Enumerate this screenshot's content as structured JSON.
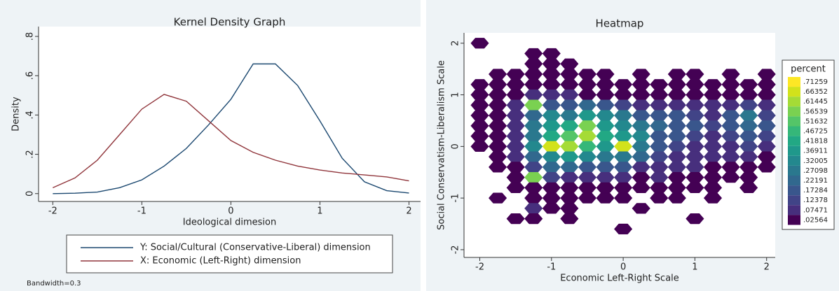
{
  "chart_data": [
    {
      "type": "line",
      "title": "Kernel Density Graph",
      "x_label": "Ideological dimesion",
      "y_label": "Density",
      "note": "Bandwidth=0.3",
      "legend": "bottom",
      "x": [
        -2,
        -1.75,
        -1.5,
        -1.25,
        -1,
        -0.75,
        -0.5,
        -0.25,
        0,
        0.25,
        0.5,
        0.75,
        1,
        1.25,
        1.5,
        1.75,
        2
      ],
      "series": [
        {
          "name": "Y: Social/Cultural (Conservative-Liberal) dimension",
          "color": "#1a476f",
          "values": [
            0.0,
            0.002,
            0.008,
            0.03,
            0.07,
            0.14,
            0.23,
            0.35,
            0.48,
            0.66,
            0.66,
            0.55,
            0.37,
            0.18,
            0.06,
            0.015,
            0.003
          ]
        },
        {
          "name": "X: Economic (Left-Right) dimension",
          "color": "#90353b",
          "values": [
            0.03,
            0.08,
            0.17,
            0.3,
            0.43,
            0.505,
            0.47,
            0.37,
            0.27,
            0.21,
            0.17,
            0.14,
            0.12,
            0.105,
            0.095,
            0.085,
            0.065
          ]
        }
      ],
      "xlim": [
        -2.16,
        2.13
      ],
      "ylim": [
        -0.04,
        0.85
      ],
      "xticks": [
        -2,
        -1,
        0,
        1,
        2
      ],
      "yticks": [
        0,
        {
          "value": 0.2,
          "label": ".2"
        },
        {
          "value": 0.4,
          "label": ".4"
        },
        {
          "value": 0.6,
          "label": ".6"
        },
        {
          "value": 0.8,
          "label": ".8"
        }
      ]
    },
    {
      "type": "heatmap",
      "title": "Heatmap",
      "x_label": "Economic Left-Right Scale",
      "y_label": "Social Conservatism-Liberalism Scale",
      "x": [
        -2,
        -1.75,
        -1.5,
        -1.25,
        -1,
        -0.75,
        -0.5,
        -0.25,
        0,
        0.25,
        0.5,
        0.75,
        1,
        1.25,
        1.5,
        1.75,
        2
      ],
      "y": [
        2.0,
        1.8,
        1.6,
        1.4,
        1.2,
        1.0,
        0.8,
        0.6,
        0.4,
        0.2,
        0.0,
        -0.2,
        -0.4,
        -0.6,
        -0.8,
        -1.0,
        -1.2,
        -1.4,
        -1.6
      ],
      "z": [
        [
          0.03,
          null,
          null,
          null,
          null,
          null,
          null,
          null,
          null,
          null,
          null,
          null,
          null,
          null,
          null,
          null,
          null
        ],
        [
          null,
          null,
          null,
          0.03,
          0.03,
          null,
          null,
          null,
          null,
          null,
          null,
          null,
          null,
          null,
          null,
          null,
          null
        ],
        [
          null,
          null,
          null,
          0.03,
          0.03,
          0.03,
          null,
          null,
          null,
          null,
          null,
          null,
          null,
          null,
          null,
          null,
          null
        ],
        [
          null,
          0.03,
          0.03,
          0.03,
          0.03,
          0.03,
          0.03,
          0.03,
          null,
          0.03,
          null,
          0.03,
          0.03,
          null,
          0.03,
          null,
          0.03
        ],
        [
          0.03,
          0.03,
          0.03,
          0.03,
          0.05,
          0.03,
          0.03,
          0.03,
          0.03,
          0.03,
          0.03,
          0.03,
          0.03,
          0.03,
          0.03,
          0.03,
          0.03
        ],
        [
          0.03,
          0.03,
          0.05,
          0.08,
          0.1,
          0.08,
          0.05,
          0.05,
          0.05,
          0.05,
          0.03,
          0.05,
          0.05,
          0.03,
          0.05,
          0.05,
          0.05
        ],
        [
          0.03,
          0.03,
          0.08,
          0.6,
          0.2,
          0.2,
          0.25,
          0.2,
          0.15,
          0.1,
          0.1,
          0.12,
          0.1,
          0.08,
          0.1,
          0.15,
          0.1
        ],
        [
          0.03,
          0.03,
          0.1,
          0.25,
          0.35,
          0.3,
          0.4,
          0.35,
          0.3,
          0.2,
          0.2,
          0.2,
          0.15,
          0.12,
          0.2,
          0.3,
          0.15
        ],
        [
          0.03,
          0.05,
          0.12,
          0.3,
          0.4,
          0.45,
          0.6,
          0.4,
          0.35,
          0.3,
          0.25,
          0.2,
          0.2,
          0.15,
          0.2,
          0.25,
          0.2
        ],
        [
          0.03,
          0.05,
          0.1,
          0.3,
          0.45,
          0.55,
          0.65,
          0.45,
          0.4,
          0.35,
          0.2,
          0.2,
          0.15,
          0.12,
          0.15,
          0.2,
          0.15
        ],
        [
          0.03,
          0.05,
          0.12,
          0.35,
          0.7,
          0.65,
          0.5,
          0.4,
          0.7,
          0.3,
          0.2,
          0.15,
          0.12,
          0.1,
          0.1,
          0.15,
          0.1
        ],
        [
          null,
          0.03,
          0.08,
          0.25,
          0.35,
          0.4,
          0.35,
          0.3,
          0.3,
          0.25,
          0.15,
          0.12,
          0.1,
          0.08,
          0.08,
          0.1,
          0.05
        ],
        [
          null,
          0.03,
          0.05,
          0.15,
          0.25,
          0.25,
          0.2,
          0.2,
          0.2,
          0.12,
          0.1,
          0.08,
          0.08,
          0.05,
          0.05,
          0.05,
          0.03
        ],
        [
          null,
          null,
          0.03,
          0.6,
          0.15,
          0.12,
          0.12,
          0.1,
          0.08,
          0.05,
          0.08,
          0.05,
          0.03,
          0.03,
          0.03,
          0.03,
          null
        ],
        [
          null,
          null,
          0.03,
          0.05,
          0.05,
          0.05,
          0.05,
          0.03,
          0.03,
          0.03,
          0.03,
          0.03,
          0.03,
          0.03,
          null,
          0.03,
          null
        ],
        [
          null,
          0.03,
          null,
          0.03,
          0.03,
          0.03,
          0.03,
          0.03,
          0.03,
          null,
          0.03,
          0.03,
          null,
          0.03,
          null,
          null,
          null
        ],
        [
          null,
          null,
          null,
          0.08,
          0.03,
          0.03,
          null,
          null,
          null,
          0.03,
          null,
          null,
          null,
          null,
          null,
          null,
          null
        ],
        [
          null,
          null,
          0.03,
          0.03,
          null,
          0.03,
          null,
          null,
          null,
          null,
          null,
          null,
          0.03,
          null,
          null,
          null,
          null
        ],
        [
          null,
          null,
          null,
          null,
          null,
          null,
          null,
          null,
          0.03,
          null,
          null,
          null,
          null,
          null,
          null,
          null,
          null
        ]
      ],
      "xlim": [
        -2.22,
        2.12
      ],
      "ylim": [
        -2.15,
        2.2
      ],
      "xticks": [
        -2,
        -1,
        0,
        1,
        2
      ],
      "yticks": [
        -2,
        -1,
        0,
        1,
        2
      ],
      "colorbar": {
        "title": "percent",
        "levels": [
          {
            "value": 0.71259,
            "label": ".71259",
            "color": "#fde725"
          },
          {
            "value": 0.66352,
            "label": ".66352",
            "color": "#d2e21b"
          },
          {
            "value": 0.61445,
            "label": ".61445",
            "color": "#a5db36"
          },
          {
            "value": 0.56539,
            "label": ".56539",
            "color": "#7ad151"
          },
          {
            "value": 0.51632,
            "label": ".51632",
            "color": "#54c568"
          },
          {
            "value": 0.46725,
            "label": ".46725",
            "color": "#35b779"
          },
          {
            "value": 0.41818,
            "label": ".41818",
            "color": "#22a884"
          },
          {
            "value": 0.36911,
            "label": ".36911",
            "color": "#1f988b"
          },
          {
            "value": 0.32005,
            "label": ".32005",
            "color": "#23888e"
          },
          {
            "value": 0.27098,
            "label": ".27098",
            "color": "#2a788e"
          },
          {
            "value": 0.22191,
            "label": ".22191",
            "color": "#31688e"
          },
          {
            "value": 0.17284,
            "label": ".17284",
            "color": "#39568c"
          },
          {
            "value": 0.12378,
            "label": ".12378",
            "color": "#414487"
          },
          {
            "value": 0.07471,
            "label": ".07471",
            "color": "#472f7d"
          },
          {
            "value": 0.02564,
            "label": ".02564",
            "color": "#440154"
          }
        ]
      }
    }
  ]
}
